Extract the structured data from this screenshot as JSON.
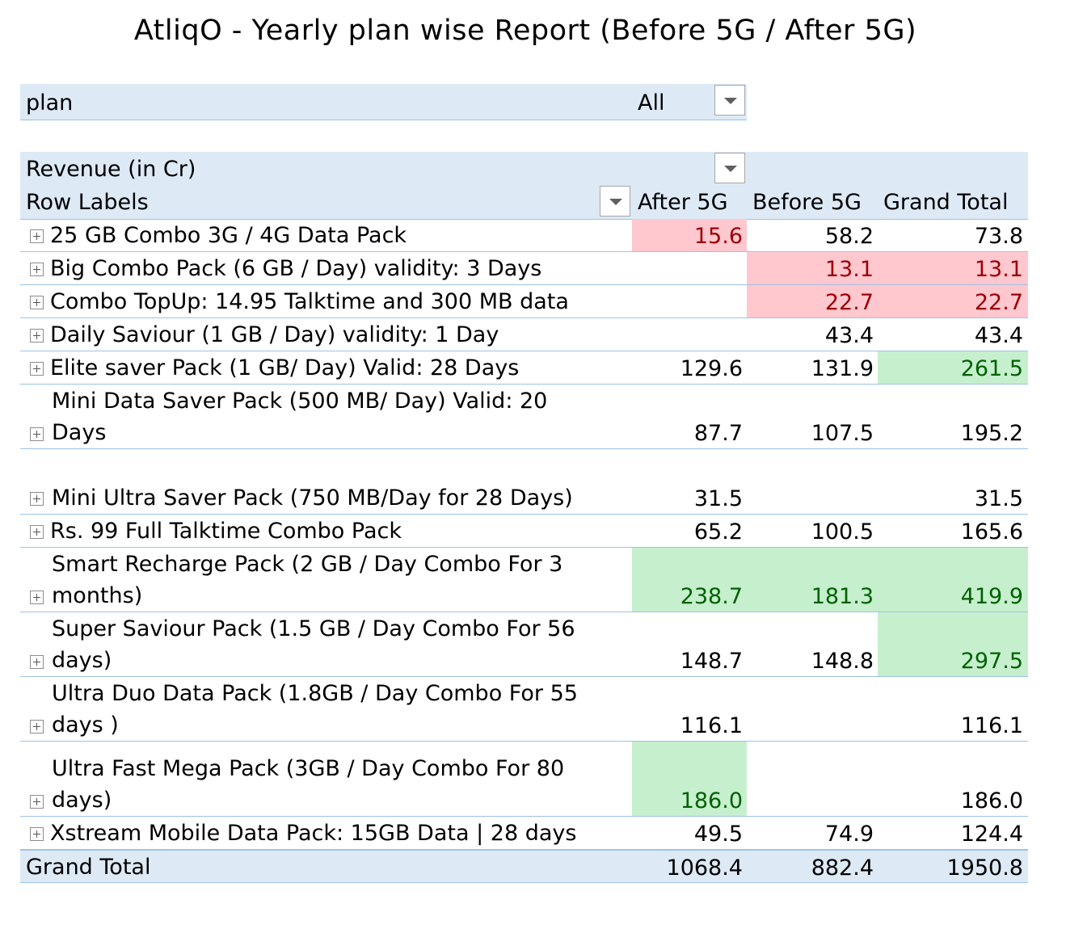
{
  "title": "AtliqO - Yearly plan wise Report (Before 5G / After 5G)",
  "filter": {
    "label": "plan",
    "value": "All"
  },
  "pivot": {
    "values_label": "Revenue (in Cr)",
    "row_labels": "Row Labels",
    "columns": [
      "After 5G",
      "Before 5G",
      "Grand Total"
    ],
    "rows": [
      {
        "line1": "25 GB Combo 3G / 4G Data Pack",
        "line2": "",
        "after": "15.6",
        "before": "58.2",
        "total": "73.8"
      },
      {
        "line1": "Big Combo Pack (6 GB / Day) validity: 3 Days",
        "line2": "",
        "after": "",
        "before": "13.1",
        "total": "13.1"
      },
      {
        "line1": "Combo TopUp: 14.95 Talktime and 300 MB data",
        "line2": "",
        "after": "",
        "before": "22.7",
        "total": "22.7"
      },
      {
        "line1": "Daily Saviour (1 GB / Day) validity: 1 Day",
        "line2": "",
        "after": "",
        "before": "43.4",
        "total": "43.4"
      },
      {
        "line1": "Elite saver Pack (1 GB/ Day) Valid: 28 Days",
        "line2": "",
        "after": "129.6",
        "before": "131.9",
        "total": "261.5"
      },
      {
        "line1": "Mini Data Saver Pack (500 MB/ Day) Valid: 20",
        "line2": "Days",
        "after": "87.7",
        "before": "107.5",
        "total": "195.2"
      },
      {
        "line1": "Mini Ultra Saver Pack (750 MB/Day for 28 Days)",
        "line2": "",
        "after": "31.5",
        "before": "",
        "total": "31.5"
      },
      {
        "line1": "Rs. 99 Full Talktime Combo Pack",
        "line2": "",
        "after": "65.2",
        "before": "100.5",
        "total": "165.6"
      },
      {
        "line1": "Smart Recharge Pack (2 GB / Day Combo For 3",
        "line2": "months)",
        "after": "238.7",
        "before": "181.3",
        "total": "419.9"
      },
      {
        "line1": "Super Saviour Pack (1.5 GB / Day Combo For 56",
        "line2": "days)",
        "after": "148.7",
        "before": "148.8",
        "total": "297.5"
      },
      {
        "line1": "Ultra Duo Data Pack (1.8GB / Day Combo For 55",
        "line2": "days )",
        "after": "116.1",
        "before": "",
        "total": "116.1"
      },
      {
        "line1": "Ultra Fast Mega Pack (3GB / Day Combo For 80",
        "line2": "days)",
        "after": "186.0",
        "before": "",
        "total": "186.0"
      },
      {
        "line1": "Xstream Mobile Data Pack: 15GB Data | 28 days",
        "line2": "",
        "after": "49.5",
        "before": "74.9",
        "total": "124.4"
      }
    ],
    "grand_total": {
      "label": "Grand Total",
      "after": "1068.4",
      "before": "882.4",
      "total": "1950.8"
    }
  },
  "highlight_colors": {
    "low_fill": "#ffc7ce",
    "low_text": "#9c0006",
    "high_fill": "#c6efce",
    "high_text": "#006100"
  }
}
